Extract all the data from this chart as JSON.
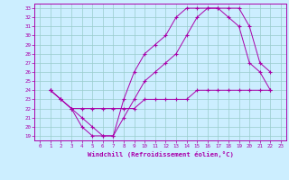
{
  "xlabel": "Windchill (Refroidissement éolien,°C)",
  "bg_color": "#cceeff",
  "line_color": "#aa00aa",
  "grid_color": "#99cccc",
  "xlim": [
    -0.5,
    23.5
  ],
  "ylim": [
    18.5,
    33.5
  ],
  "xticks": [
    0,
    1,
    2,
    3,
    4,
    5,
    6,
    7,
    8,
    9,
    10,
    11,
    12,
    13,
    14,
    15,
    16,
    17,
    18,
    19,
    20,
    21,
    22,
    23
  ],
  "yticks": [
    19,
    20,
    21,
    22,
    23,
    24,
    25,
    26,
    27,
    28,
    29,
    30,
    31,
    32,
    33
  ],
  "line1_x": [
    1,
    2,
    3,
    4,
    5,
    6,
    7,
    8,
    9,
    10,
    11,
    12,
    13,
    14,
    15,
    16,
    17,
    18,
    19,
    20,
    21,
    22
  ],
  "line1_y": [
    24,
    23,
    22,
    20,
    19,
    19,
    19,
    23,
    26,
    28,
    29,
    30,
    32,
    33,
    33,
    33,
    33,
    32,
    31,
    27,
    26,
    24
  ],
  "line2_x": [
    1,
    2,
    3,
    4,
    5,
    6,
    7,
    8,
    9,
    10,
    11,
    12,
    13,
    14,
    15,
    16,
    17,
    18,
    19,
    20,
    21,
    22
  ],
  "line2_y": [
    24,
    23,
    22,
    21,
    20,
    19,
    19,
    21,
    23,
    25,
    26,
    27,
    28,
    30,
    32,
    33,
    33,
    33,
    33,
    31,
    27,
    26
  ],
  "line3_x": [
    1,
    2,
    3,
    4,
    5,
    6,
    7,
    8,
    9,
    10,
    11,
    12,
    13,
    14,
    15,
    16,
    17,
    18,
    19,
    20,
    21,
    22
  ],
  "line3_y": [
    24,
    23,
    22,
    22,
    22,
    22,
    22,
    22,
    22,
    23,
    23,
    23,
    23,
    23,
    24,
    24,
    24,
    24,
    24,
    24,
    24,
    24
  ]
}
